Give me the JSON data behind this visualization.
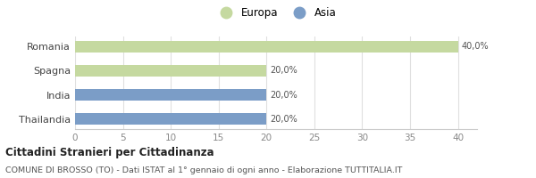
{
  "categories": [
    "Romania",
    "Spagna",
    "India",
    "Thailandia"
  ],
  "values": [
    40.0,
    20.0,
    20.0,
    20.0
  ],
  "colors": [
    "#c5d9a0",
    "#c5d9a0",
    "#7b9dc7",
    "#7b9dc7"
  ],
  "bar_labels": [
    "40,0%",
    "20,0%",
    "20,0%",
    "20,0%"
  ],
  "legend": [
    {
      "label": "Europa",
      "color": "#c5d9a0"
    },
    {
      "label": "Asia",
      "color": "#7b9dc7"
    }
  ],
  "xlim": [
    0,
    42
  ],
  "xticks": [
    0,
    5,
    10,
    15,
    20,
    25,
    30,
    35,
    40
  ],
  "title": "Cittadini Stranieri per Cittadinanza",
  "subtitle": "COMUNE DI BROSSO (TO) - Dati ISTAT al 1° gennaio di ogni anno - Elaborazione TUTTITALIA.IT",
  "background_color": "#ffffff",
  "bar_height": 0.5
}
